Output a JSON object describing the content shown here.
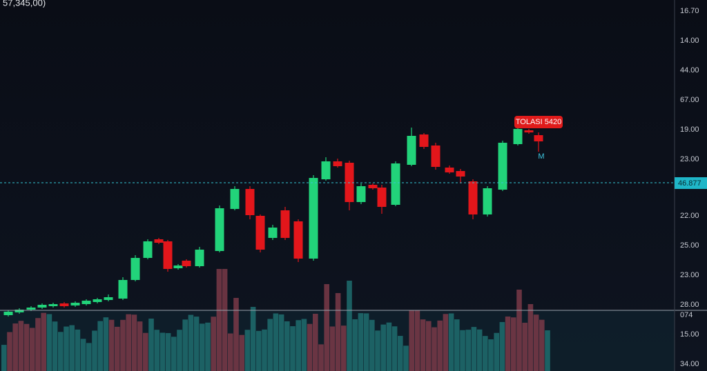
{
  "top_label": "57,345,00)",
  "price_axis": [
    "16.70",
    "14.00",
    "44.00",
    "67.00",
    "19.00",
    "23.00",
    "22.00",
    "25.00",
    "23.00",
    "28.00"
  ],
  "price_line_label": "46.877",
  "volume_axis": [
    "074",
    "15.00",
    "34.00"
  ],
  "tag": "TOLASI 5420",
  "marker": "M"
}
